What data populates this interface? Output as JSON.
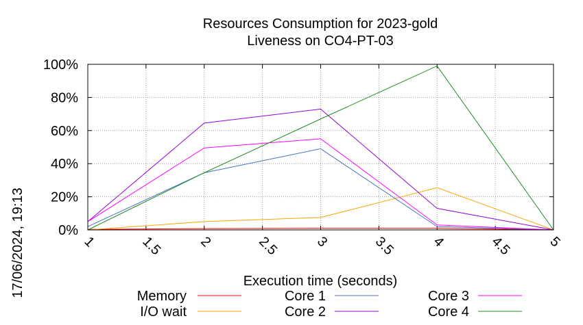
{
  "chart_data": {
    "type": "line",
    "title": "Resources Consumption for 2023-gold",
    "subtitle": "Liveness on CO4-PT-03",
    "xlabel": "Execution time (seconds)",
    "ylabel": "",
    "timestamp": "17/06/2024, 19:13",
    "xlim": [
      1,
      5
    ],
    "ylim": [
      0,
      100
    ],
    "x_ticks": [
      "1",
      "1.5",
      "2",
      "2.5",
      "3",
      "3.5",
      "4",
      "4.5",
      "5"
    ],
    "y_ticks": [
      "0%",
      "20%",
      "40%",
      "60%",
      "80%",
      "100%"
    ],
    "grid": true,
    "legend_position": "bottom",
    "x": [
      1,
      2,
      3,
      4,
      5
    ],
    "series": [
      {
        "name": "Memory",
        "color": "#ff0000",
        "values": [
          0.3,
          0.8,
          1.0,
          1.0,
          0
        ]
      },
      {
        "name": "I/O wait",
        "color": "#ffa500",
        "values": [
          0,
          5,
          7.5,
          25.5,
          0
        ]
      },
      {
        "name": "Core 1",
        "color": "#4472c4",
        "values": [
          2,
          34.5,
          49,
          2,
          0
        ]
      },
      {
        "name": "Core 2",
        "color": "#9400d3",
        "values": [
          5,
          64.5,
          73,
          13,
          0
        ]
      },
      {
        "name": "Core 3",
        "color": "#ff00ff",
        "values": [
          5,
          49.5,
          55,
          3,
          0
        ]
      },
      {
        "name": "Core 4",
        "color": "#228b22",
        "values": [
          0,
          34.5,
          67,
          99,
          0
        ]
      }
    ]
  }
}
